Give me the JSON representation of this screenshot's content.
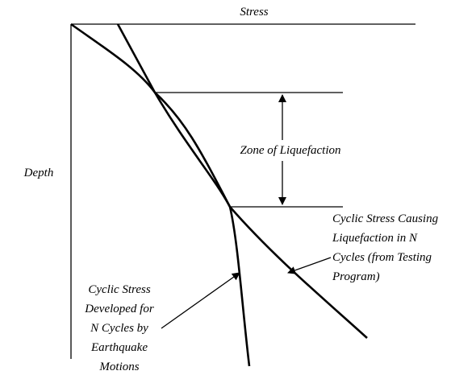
{
  "axes": {
    "x_label": "Stress",
    "y_label": "Depth"
  },
  "zone_label": "Zone of Liquefaction",
  "right_label": [
    "Cyclic Stress Causing",
    "Liquefaction in N",
    "Cycles (from Testing",
    "Program)"
  ],
  "left_label": [
    "Cyclic Stress",
    "Developed for",
    "N Cycles by",
    "Earthquake",
    "Motions"
  ]
}
